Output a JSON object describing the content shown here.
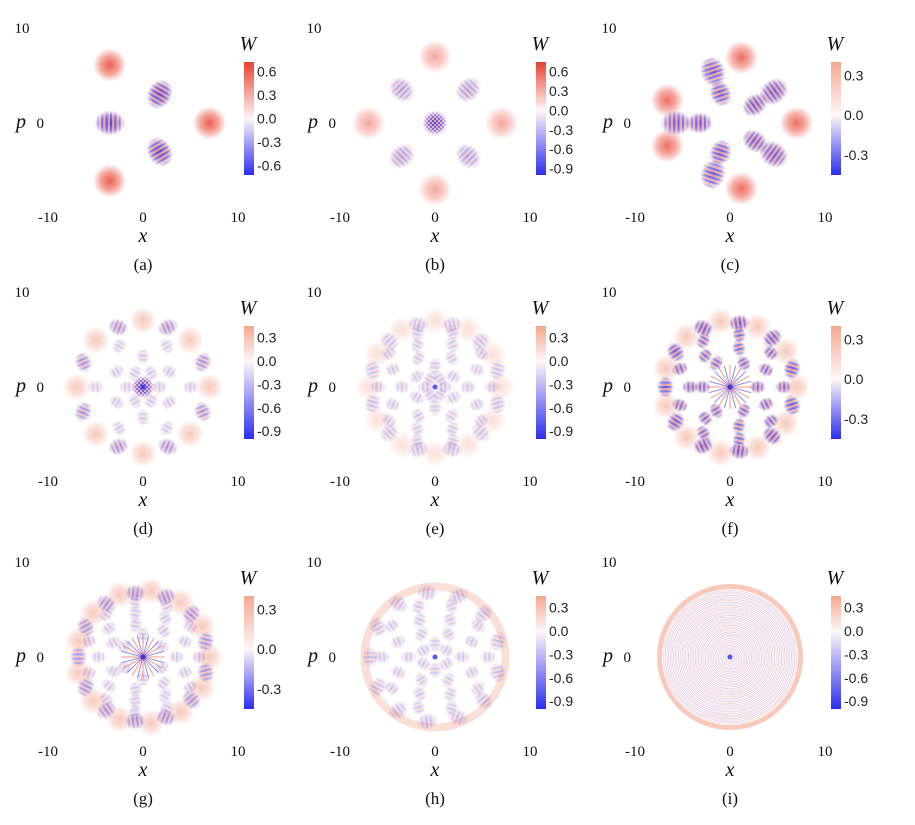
{
  "figure": {
    "description_labels": [
      "(a)",
      "(b)",
      "(c)",
      "(d)",
      "(e)",
      "(f)",
      "(g)",
      "(h)",
      "(i)"
    ]
  },
  "chart_data": [
    {
      "type": "heatmap",
      "panel": "(a)",
      "xlabel": "x",
      "ylabel": "p",
      "colorbar_title": "W",
      "xlim": [
        -10,
        10
      ],
      "ylim": [
        -10,
        10
      ],
      "x_ticks": [
        "-10",
        "0",
        "10"
      ],
      "y_ticks": [
        "10",
        "0"
      ],
      "colorbar_ticks": [
        "0.6",
        "0.3",
        "0.0",
        "-0.3",
        "-0.6"
      ],
      "colorbar_range": [
        -0.72,
        0.72
      ],
      "blobs": [
        {
          "kind": "gauss",
          "x": 7.0,
          "y": 0.0,
          "amp": 1.0,
          "r": 1.1
        },
        {
          "kind": "gauss",
          "x": -3.5,
          "y": 6.1,
          "amp": 1.0,
          "r": 1.1
        },
        {
          "kind": "gauss",
          "x": -3.5,
          "y": -6.1,
          "amp": 1.0,
          "r": 1.1
        },
        {
          "kind": "fringe",
          "x": 1.75,
          "y": 3.03,
          "amp": 1.0,
          "r": 1.1,
          "freq": 5,
          "angle": 60
        },
        {
          "kind": "fringe",
          "x": 1.75,
          "y": -3.03,
          "amp": 1.0,
          "r": 1.1,
          "freq": 5,
          "angle": -60
        },
        {
          "kind": "fringe",
          "x": -3.5,
          "y": 0.0,
          "amp": 1.0,
          "r": 1.1,
          "freq": 5,
          "angle": 0
        }
      ]
    },
    {
      "type": "heatmap",
      "panel": "(b)",
      "xlabel": "x",
      "ylabel": "p",
      "colorbar_title": "W",
      "xlim": [
        -10,
        10
      ],
      "ylim": [
        -10,
        10
      ],
      "x_ticks": [
        "-10",
        "0",
        "10"
      ],
      "y_ticks": [
        "10",
        "0"
      ],
      "colorbar_ticks": [
        "0.6",
        "0.3",
        "0.0",
        "-0.3",
        "-0.6",
        "-0.9"
      ],
      "colorbar_range": [
        -1.0,
        0.75
      ],
      "blobs": [
        {
          "kind": "gauss",
          "x": 7.0,
          "y": 0.0,
          "amp": 0.55,
          "r": 1.1
        },
        {
          "kind": "gauss",
          "x": -7.0,
          "y": 0.0,
          "amp": 0.55,
          "r": 1.1
        },
        {
          "kind": "gauss",
          "x": 0.0,
          "y": 7.0,
          "amp": 0.55,
          "r": 1.1
        },
        {
          "kind": "gauss",
          "x": 0.0,
          "y": -7.0,
          "amp": 0.55,
          "r": 1.1
        },
        {
          "kind": "fringe",
          "x": 3.5,
          "y": 3.5,
          "amp": 0.8,
          "r": 1.0,
          "freq": 5,
          "angle": 45
        },
        {
          "kind": "fringe",
          "x": -3.5,
          "y": 3.5,
          "amp": 0.8,
          "r": 1.0,
          "freq": 5,
          "angle": -45
        },
        {
          "kind": "fringe",
          "x": 3.5,
          "y": -3.5,
          "amp": 0.8,
          "r": 1.0,
          "freq": 5,
          "angle": -45
        },
        {
          "kind": "fringe",
          "x": -3.5,
          "y": -3.5,
          "amp": 0.8,
          "r": 1.0,
          "freq": 5,
          "angle": 45
        },
        {
          "kind": "checker",
          "x": 0.0,
          "y": 0.0,
          "amp": 0.9,
          "r": 1.1,
          "freq": 7
        }
      ]
    },
    {
      "type": "heatmap",
      "panel": "(c)",
      "xlabel": "x",
      "ylabel": "p",
      "colorbar_title": "W",
      "xlim": [
        -10,
        10
      ],
      "ylim": [
        -10,
        10
      ],
      "x_ticks": [
        "-10",
        "0",
        "10"
      ],
      "y_ticks": [
        "10",
        "0"
      ],
      "colorbar_ticks": [
        "0.3",
        "0.0",
        "-0.3"
      ],
      "colorbar_range": [
        -0.45,
        0.4
      ],
      "blobs": [
        {
          "kind": "gauss",
          "x": 7.0,
          "y": 0.0,
          "amp": 0.9,
          "r": 1.1
        },
        {
          "kind": "gauss",
          "x": 1.2,
          "y": 6.9,
          "amp": 0.9,
          "r": 1.1
        },
        {
          "kind": "gauss",
          "x": -6.6,
          "y": 2.4,
          "amp": 0.9,
          "r": 1.1
        },
        {
          "kind": "gauss",
          "x": -6.6,
          "y": -2.4,
          "amp": 0.9,
          "r": 1.1
        },
        {
          "kind": "gauss",
          "x": 1.2,
          "y": -6.9,
          "amp": 0.9,
          "r": 1.1
        },
        {
          "kind": "fringe",
          "x": 4.6,
          "y": 3.3,
          "amp": 0.9,
          "r": 1.1,
          "freq": 5,
          "angle": 36
        },
        {
          "kind": "fringe",
          "x": -1.8,
          "y": 5.4,
          "amp": 0.9,
          "r": 1.1,
          "freq": 5,
          "angle": -72
        },
        {
          "kind": "fringe",
          "x": -5.7,
          "y": 0.0,
          "amp": 0.9,
          "r": 1.1,
          "freq": 5,
          "angle": 0
        },
        {
          "kind": "fringe",
          "x": -1.8,
          "y": -5.4,
          "amp": 0.9,
          "r": 1.1,
          "freq": 5,
          "angle": 72
        },
        {
          "kind": "fringe",
          "x": 4.6,
          "y": -3.3,
          "amp": 0.9,
          "r": 1.1,
          "freq": 5,
          "angle": -36
        },
        {
          "kind": "fringe",
          "x": 2.6,
          "y": 1.9,
          "amp": 0.9,
          "r": 0.95,
          "freq": 5,
          "angle": 36
        },
        {
          "kind": "fringe",
          "x": -1.0,
          "y": 3.1,
          "amp": 0.9,
          "r": 0.95,
          "freq": 5,
          "angle": -72
        },
        {
          "kind": "fringe",
          "x": -3.2,
          "y": 0.0,
          "amp": 0.9,
          "r": 0.95,
          "freq": 5,
          "angle": 0
        },
        {
          "kind": "fringe",
          "x": -1.0,
          "y": -3.1,
          "amp": 0.9,
          "r": 0.95,
          "freq": 5,
          "angle": 72
        },
        {
          "kind": "fringe",
          "x": 2.6,
          "y": -1.9,
          "amp": 0.9,
          "r": 0.95,
          "freq": 5,
          "angle": -36
        }
      ]
    },
    {
      "type": "heatmap",
      "panel": "(d)",
      "xlabel": "x",
      "ylabel": "p",
      "colorbar_title": "W",
      "xlim": [
        -10,
        10
      ],
      "ylim": [
        -10,
        10
      ],
      "x_ticks": [
        "-10",
        "0",
        "10"
      ],
      "y_ticks": [
        "10",
        "0"
      ],
      "colorbar_ticks": [
        "0.3",
        "0.0",
        "-0.3",
        "-0.6",
        "-0.9"
      ],
      "colorbar_range": [
        -1.0,
        0.45
      ],
      "ring_count": 8,
      "ring_radius": 7.0,
      "inner_rings": [
        5.0,
        3.2,
        1.7
      ],
      "center": "checker",
      "style": "sparse"
    },
    {
      "type": "heatmap",
      "panel": "(e)",
      "xlabel": "x",
      "ylabel": "p",
      "colorbar_title": "W",
      "xlim": [
        -10,
        10
      ],
      "ylim": [
        -10,
        10
      ],
      "x_ticks": [
        "-10",
        "0",
        "10"
      ],
      "y_ticks": [
        "10",
        "0"
      ],
      "colorbar_ticks": [
        "0.3",
        "0.0",
        "-0.3",
        "-0.6",
        "-0.9"
      ],
      "colorbar_range": [
        -1.0,
        0.45
      ],
      "ring_count": 12,
      "ring_radius": 7.0,
      "inner_rings": [
        6.0,
        4.8,
        3.5,
        2.2,
        1.0
      ],
      "center": "dot",
      "style": "faint"
    },
    {
      "type": "heatmap",
      "panel": "(f)",
      "xlabel": "x",
      "ylabel": "p",
      "colorbar_title": "W",
      "xlim": [
        -10,
        10
      ],
      "ylim": [
        -10,
        10
      ],
      "x_ticks": [
        "-10",
        "0",
        "10"
      ],
      "y_ticks": [
        "10",
        "0"
      ],
      "colorbar_ticks": [
        "0.3",
        "0.0",
        "-0.3"
      ],
      "colorbar_range": [
        -0.45,
        0.4
      ],
      "ring_count": 11,
      "ring_radius": 7.0,
      "inner_rings": [
        5.6,
        4.2,
        2.9
      ],
      "center": "star",
      "style": "strong"
    },
    {
      "type": "heatmap",
      "panel": "(g)",
      "xlabel": "x",
      "ylabel": "p",
      "colorbar_title": "W",
      "xlim": [
        -10,
        10
      ],
      "ylim": [
        -10,
        10
      ],
      "x_ticks": [
        "-10",
        "0",
        "10"
      ],
      "y_ticks": [
        "10",
        "0"
      ],
      "colorbar_ticks": [
        "0.3",
        "0.0",
        "-0.3"
      ],
      "colorbar_range": [
        -0.45,
        0.4
      ],
      "ring_count": 13,
      "ring_radius": 7.0,
      "inner_rings": [
        5.9,
        4.7,
        3.5,
        2.3
      ],
      "center": "star",
      "style": "medium"
    },
    {
      "type": "heatmap",
      "panel": "(h)",
      "xlabel": "x",
      "ylabel": "p",
      "colorbar_title": "W",
      "xlim": [
        -10,
        10
      ],
      "ylim": [
        -10,
        10
      ],
      "x_ticks": [
        "-10",
        "0",
        "10"
      ],
      "y_ticks": [
        "10",
        "0"
      ],
      "colorbar_ticks": [
        "0.3",
        "0.0",
        "-0.3",
        "-0.6",
        "-0.9"
      ],
      "colorbar_range": [
        -1.0,
        0.45
      ],
      "ring_count": 30,
      "ring_radius": 7.0,
      "inner_rings": [
        5.6,
        4.2,
        2.8,
        1.4
      ],
      "center": "dot",
      "style": "faint"
    },
    {
      "type": "heatmap",
      "panel": "(i)",
      "xlabel": "x",
      "ylabel": "p",
      "colorbar_title": "W",
      "xlim": [
        -10,
        10
      ],
      "ylim": [
        -10,
        10
      ],
      "x_ticks": [
        "-10",
        "0",
        "10"
      ],
      "y_ticks": [
        "10",
        "0"
      ],
      "colorbar_ticks": [
        "0.3",
        "0.0",
        "-0.3",
        "-0.6",
        "-0.9"
      ],
      "colorbar_range": [
        -1.0,
        0.45
      ],
      "ring_count": 0,
      "ring_radius": 7.0,
      "center": "dot",
      "style": "concentric"
    }
  ],
  "colors": {
    "positive": "#e8412e",
    "zero": "#ffffff",
    "negative": "#2a2ef0"
  }
}
